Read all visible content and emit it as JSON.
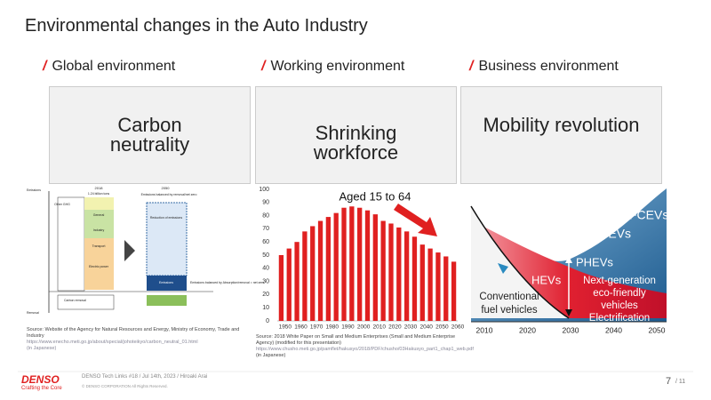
{
  "title": "Environmental changes in the Auto Industry",
  "sections": [
    {
      "heading": "Global environment",
      "box": [
        "Carbon",
        "neutrality"
      ]
    },
    {
      "heading": "Working environment",
      "box": [
        "Shrinking",
        "workforce"
      ]
    },
    {
      "heading": "Business environment",
      "box": [
        "Mobility revolution"
      ]
    }
  ],
  "left_diagram": {
    "labels": [
      "Emissions",
      "2018",
      "2050",
      "1.24 billion tons",
      "Emissions balanced by removal/net zero",
      "Other GHG",
      "General",
      "Industry",
      "Transport",
      "Electric power",
      "Reduction of emissions",
      "Emissions",
      "Emissions balanced by Absorption/removal = net zero",
      "Carbon removal",
      "Removal"
    ],
    "source": [
      "Source: Website of the Agency for Natural Resources and Energy, Ministry of Economy, Trade and Industry",
      "https://www.enecho.meti.go.jp/about/special/johoteikyo/carbon_neutral_01.html",
      "(in Japanese)"
    ]
  },
  "chart_data": {
    "type": "bar",
    "annotation": "Aged 15 to 64",
    "categories": [
      "1950",
      null,
      "1960",
      null,
      "1970",
      null,
      "1980",
      null,
      "1990",
      null,
      "2000",
      null,
      "2010",
      null,
      "2020",
      null,
      "2030",
      null,
      "2040",
      null,
      "2050",
      null,
      "2060"
    ],
    "values": [
      50,
      55,
      60,
      68,
      72,
      76,
      79,
      82,
      86,
      87,
      86,
      84,
      81,
      76,
      74,
      71,
      68,
      64,
      58,
      55,
      52,
      49,
      45
    ],
    "color": "#e02020",
    "ylim": [
      0,
      100
    ],
    "yticks": [
      0,
      10,
      20,
      30,
      40,
      50,
      60,
      70,
      80,
      90,
      100
    ],
    "grid": false,
    "source": [
      "Source: 2018 White Paper on Small and Medium Enterprises (Small and Medium Enterprise Agency) (modified for this presentation)",
      "https://www.chusho.meti.go.jp/pamflet/hakusyo/2018/PDF/chusho/03Hakusyo_part1_chap1_web.pdf",
      "(in Japanese)"
    ]
  },
  "right_diagram": {
    "FCEVs": "FCEVs",
    "BEVs": "BEVs",
    "PHEVs": "PHEVs",
    "HEVs": "HEVs",
    "next_gen": [
      "Next-generation",
      "eco-friendly",
      "vehicles",
      "Electrification"
    ],
    "conventional": [
      "Conventional",
      "fuel vehicles"
    ],
    "years": [
      "2010",
      "2020",
      "2030",
      "2040",
      "2050"
    ]
  },
  "footer": {
    "logo": "DENSO",
    "tagline": "Crafting the Core",
    "event": "DENSO Tech Links #18 / Jul 14th, 2023 / Hiroaki Arai",
    "copyright": "© DENSO CORPORATION All Rights Reserved.",
    "page": "7",
    "total": "/ 11"
  }
}
